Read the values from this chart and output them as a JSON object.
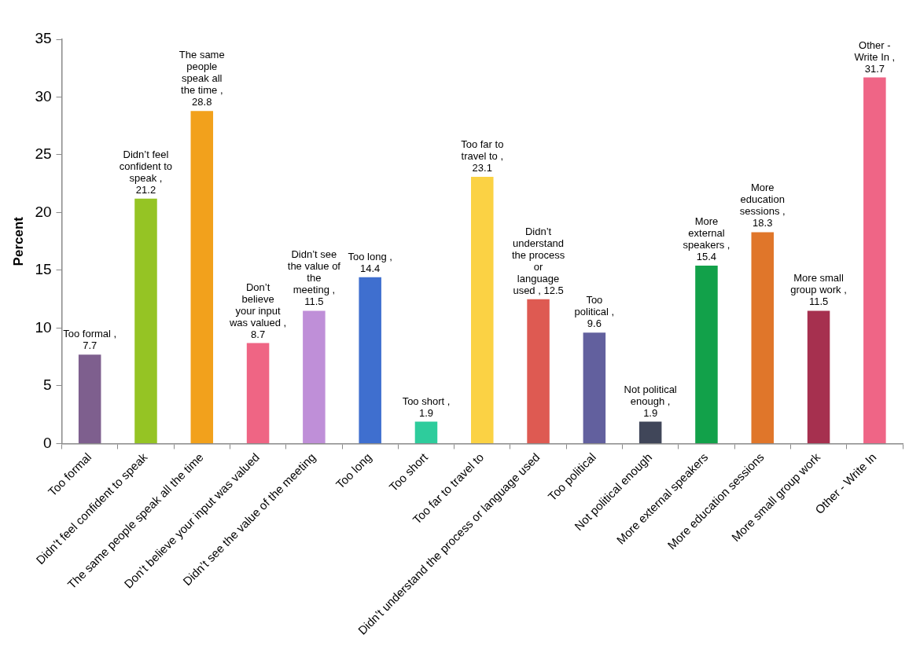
{
  "chart_data": {
    "type": "bar",
    "ylabel": "Percent",
    "categories": [
      "Too formal",
      "Didn’t feel confident to speak",
      "The same people speak all the time",
      "Don’t believe your input was valued",
      "Didn’t see the value of the meeting",
      "Too long",
      "Too short",
      "Too far to travel to",
      "Didn’t understand the process or language used",
      "Too political",
      "Not political enough",
      "More external speakers",
      "More education sessions",
      "More small group work",
      "Other - Write In"
    ],
    "values": [
      7.7,
      21.2,
      28.8,
      8.7,
      11.5,
      14.4,
      1.9,
      23.1,
      12.5,
      9.6,
      1.9,
      15.4,
      18.3,
      11.5,
      31.7
    ],
    "colors": [
      "#7e5f8e",
      "#95c424",
      "#f2a11c",
      "#ef6584",
      "#bf8fd8",
      "#3f6fcf",
      "#2ecc9c",
      "#fbd244",
      "#de5a52",
      "#62609e",
      "#404659",
      "#12a14a",
      "#e0762a",
      "#a6304f",
      "#ef6586"
    ],
    "value_labels": [
      "Too formal , 7.7",
      "Didn’t feel confident to speak , 21.2",
      "The same people speak all the time , 28.8",
      "Don’t believe your input was valued , 8.7",
      "Didn’t see the value of the meeting , 11.5",
      "Too long , 14.4",
      "Too short , 1.9",
      "Too far to travel to , 23.1",
      "Didn’t understand the process or language used , 12.5",
      "Too political , 9.6",
      "Not political enough , 1.9",
      "More external speakers , 15.4",
      "More education sessions , 18.3",
      "More small group work , 11.5",
      "Other - Write In , 31.7"
    ],
    "ylim": [
      0,
      35
    ],
    "yticks": [
      0,
      5,
      10,
      15,
      20,
      25,
      30,
      35
    ]
  }
}
